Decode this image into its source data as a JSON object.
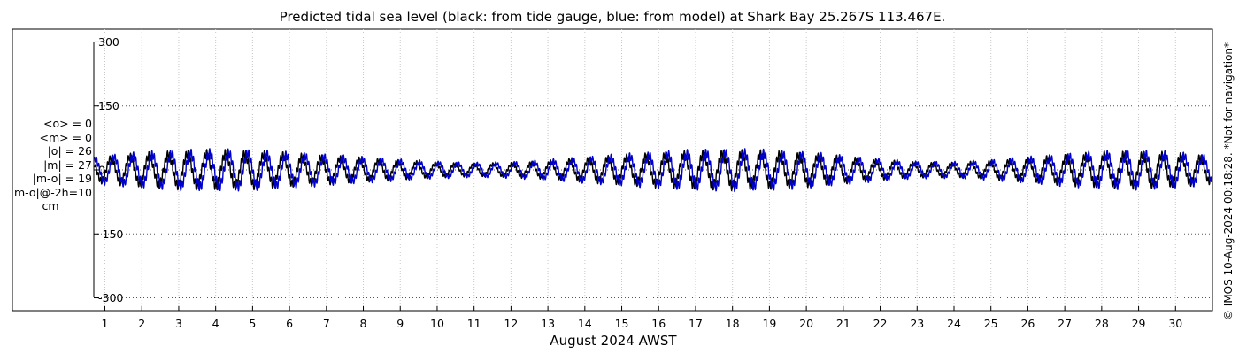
{
  "chart_data": {
    "type": "line",
    "title": "Predicted tidal sea level (black: from tide gauge, blue: from model) at Shark Bay 25.267S 113.467E.",
    "xlabel": "August 2024 AWST",
    "ylabel": "",
    "ylim": [
      -330,
      330
    ],
    "xlim": [
      0.7,
      31.0
    ],
    "yticks": [
      300,
      150,
      0,
      -150,
      -300
    ],
    "ytick_labels": [
      "300",
      "150",
      "0",
      "-150",
      "-300"
    ],
    "xticks": [
      "1",
      "2",
      "3",
      "4",
      "5",
      "6",
      "7",
      "8",
      "9",
      "10",
      "11",
      "12",
      "13",
      "14",
      "15",
      "16",
      "17",
      "18",
      "19",
      "20",
      "21",
      "22",
      "23",
      "24",
      "25",
      "26",
      "27",
      "28",
      "29",
      "30"
    ],
    "grid": true,
    "unit": "cm",
    "stats": [
      "<o> = 0",
      "<m> = 0",
      "|o| = 26",
      "|m| = 27",
      "|m-o| = 19",
      "|m-o|@-2h=10"
    ],
    "series": [
      {
        "color": "#000000",
        "amplitude": [
          25,
          34,
          42,
          47,
          49,
          47,
          42,
          36,
          30,
          24,
          19,
          16,
          18,
          23,
          30,
          37,
          43,
          47,
          49,
          47,
          42,
          34,
          25,
          19,
          18,
          23,
          30,
          38,
          44,
          46,
          42,
          34
        ],
        "phase_hours": 0
      },
      {
        "color": "#0000cc",
        "amplitude": [
          27,
          36,
          44,
          49,
          51,
          49,
          44,
          38,
          32,
          26,
          21,
          18,
          20,
          25,
          32,
          39,
          45,
          49,
          51,
          49,
          44,
          36,
          27,
          21,
          20,
          25,
          32,
          40,
          46,
          48,
          44,
          36
        ],
        "phase_hours": 2
      }
    ],
    "copyright": "© IMOS 10-Aug-2024 00:18:28. *Not for navigation*"
  }
}
